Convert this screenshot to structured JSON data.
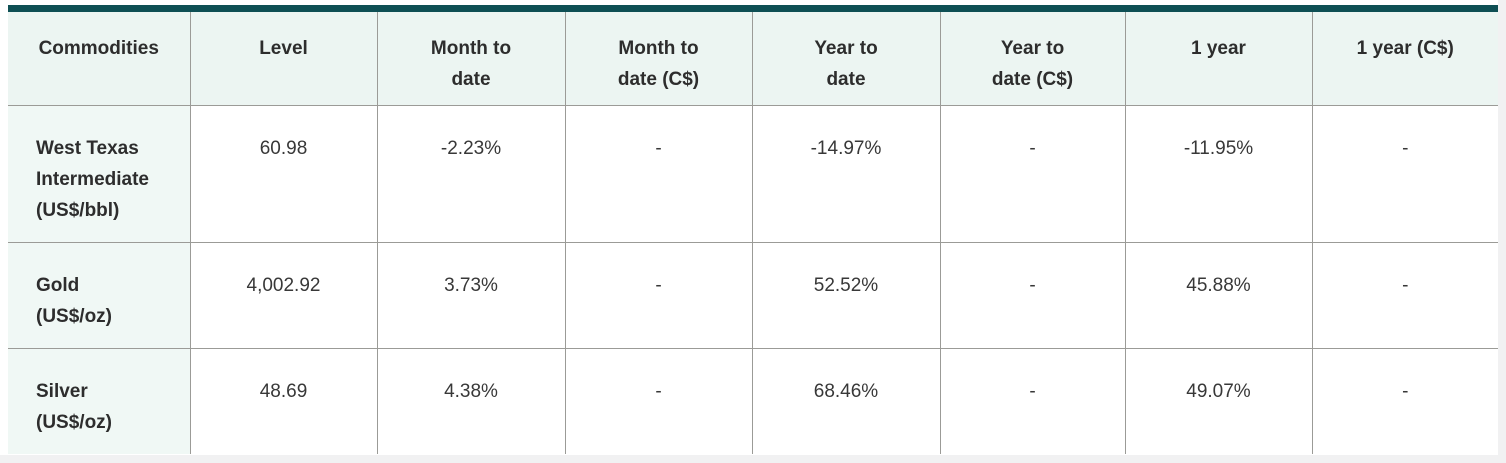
{
  "chart_data": {
    "type": "table",
    "columns": [
      "Commodities",
      "Level",
      "Month to\ndate",
      "Month to\ndate (C$)",
      "Year to\ndate",
      "Year to\ndate (C$)",
      "1 year",
      "1 year (C$)"
    ],
    "rows": [
      {
        "label": "West Texas\nIntermediate\n(US$/bbl)",
        "values": [
          "60.98",
          "-2.23%",
          "-",
          "-14.97%",
          "-",
          "-11.95%",
          "-"
        ]
      },
      {
        "label": "Gold\n(US$/oz)",
        "values": [
          "4,002.92",
          "3.73%",
          "-",
          "52.52%",
          "-",
          "45.88%",
          "-"
        ]
      },
      {
        "label": "Silver\n(US$/oz)",
        "values": [
          "48.69",
          "4.38%",
          "-",
          "68.46%",
          "-",
          "49.07%",
          "-"
        ]
      }
    ]
  },
  "colors": {
    "accent": "#0e4f54",
    "header_background": "#ecf5f2",
    "row_label_background": "#f0f8f5",
    "grid_line": "#9b9b97",
    "body_text": "#383838",
    "heading_text": "#2d2d2d",
    "page_background": "#f1f1f2",
    "card_background": "#ffffff"
  }
}
